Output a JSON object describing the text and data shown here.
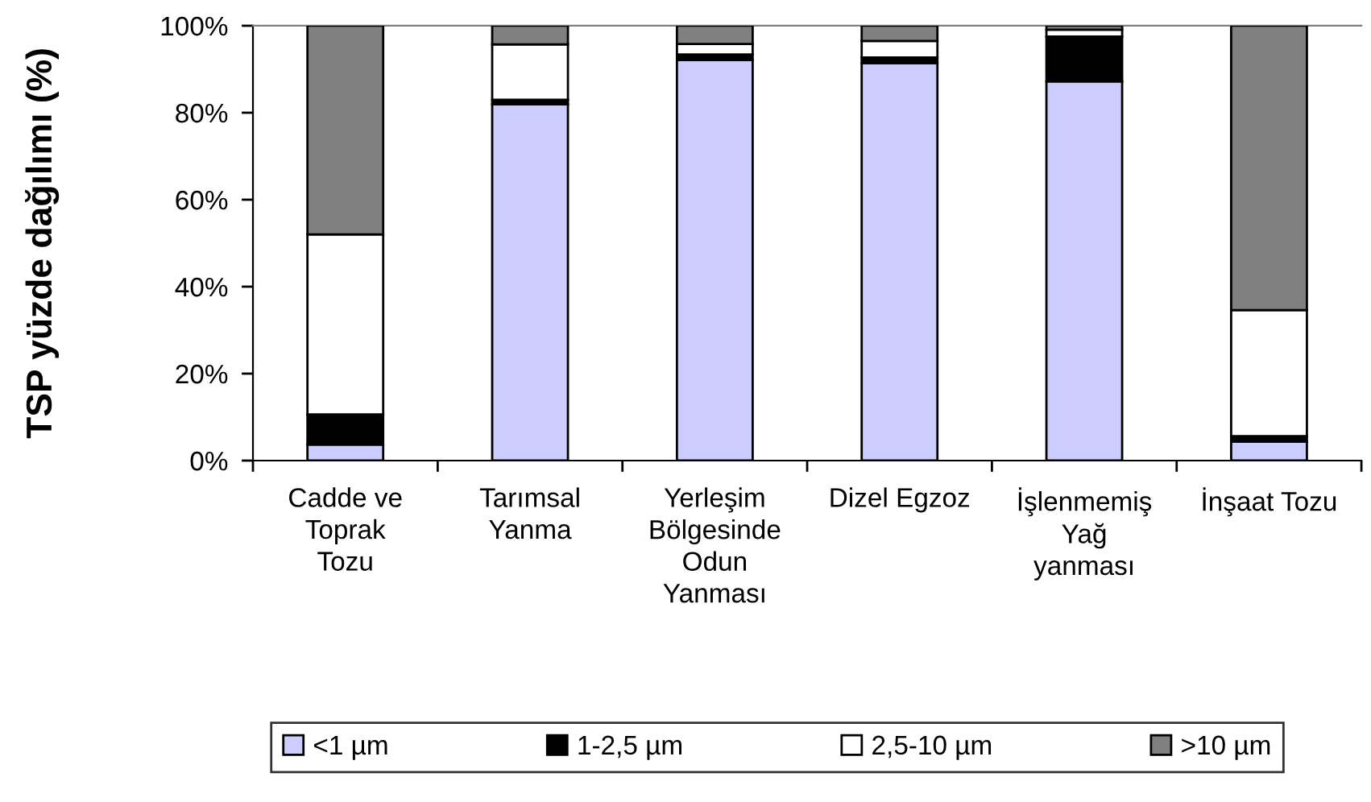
{
  "chart_data": {
    "type": "bar",
    "stacked": true,
    "ylabel": "TSP yüzde dağılımı (%)",
    "categories": [
      "Cadde ve\nToprak\nTozu",
      "Tarımsal\nYanma",
      "Yerleşim\nBölgesinde\nOdun\nYanması",
      "Dizel Egzoz",
      "İşlenmemiş\nYağ\nyanması",
      "İnşaat Tozu"
    ],
    "series": [
      {
        "name": "<1 µm",
        "color": "#ccccff",
        "values": [
          3.7,
          81.9,
          92.1,
          91.4,
          87.2,
          4.4
        ]
      },
      {
        "name": "1-2,5 µm",
        "color": "#000000",
        "values": [
          6.9,
          1.1,
          1.3,
          1.3,
          10.3,
          1.2
        ]
      },
      {
        "name": "2,5-10 µm",
        "color": "#ffffff",
        "values": [
          41.4,
          12.7,
          2.4,
          3.8,
          1.6,
          29.0
        ]
      },
      {
        "name": ">10 µm",
        "color": "#808080",
        "values": [
          48.0,
          4.3,
          4.2,
          3.5,
          0.9,
          65.4
        ]
      }
    ],
    "ylim": [
      0,
      100
    ],
    "yticks": [
      {
        "value": 0,
        "label": "0%"
      },
      {
        "value": 20,
        "label": "20%"
      },
      {
        "value": 40,
        "label": "40%"
      },
      {
        "value": 60,
        "label": "60%"
      },
      {
        "value": 80,
        "label": "80%"
      },
      {
        "value": 100,
        "label": "100%"
      }
    ],
    "legend": "bottom"
  }
}
